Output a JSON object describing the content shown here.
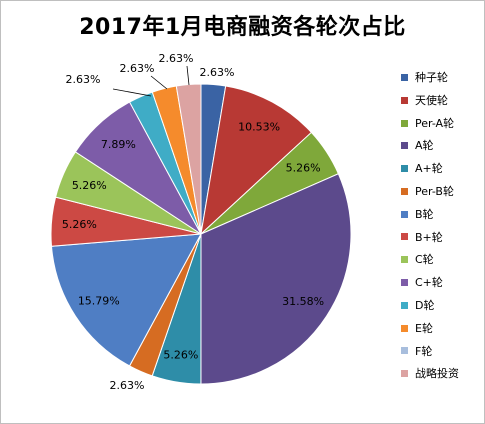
{
  "chart_data": {
    "type": "pie",
    "title": "2017年1月电商融资各轮次占比",
    "legend_position": "right",
    "slices": [
      {
        "name": "种子轮",
        "value": 2.63,
        "label": "2.63%",
        "color": "#4F81BD"
      },
      {
        "name": "天使轮",
        "value": 10.53,
        "label": "10.53%",
        "color": "#C0504D"
      },
      {
        "name": "Per-A轮",
        "value": 5.26,
        "label": "5.26%",
        "color": "#9BBB59"
      },
      {
        "name": "A轮",
        "value": 31.58,
        "label": "31.58%",
        "color": "#8064A2"
      },
      {
        "name": "A+轮",
        "value": 5.26,
        "label": "5.26%",
        "color": "#4BACC6"
      },
      {
        "name": "Per-B轮",
        "value": 2.63,
        "label": "2.63%",
        "color": "#F79646"
      },
      {
        "name": "B轮",
        "value": 15.79,
        "label": "15.79%",
        "color": "#2C4D75"
      },
      {
        "name": "B+轮",
        "value": 5.26,
        "label": "5.26%",
        "color": "#772C2A"
      },
      {
        "name": "C轮",
        "value": 5.26,
        "label": "5.26%",
        "color": "#5F7530"
      },
      {
        "name": "C+轮",
        "value": 7.89,
        "label": "7.89%",
        "color": "#4D3B62"
      },
      {
        "name": "D轮",
        "value": 2.63,
        "label": "2.63%",
        "color": "#276A7C"
      },
      {
        "name": "E轮",
        "value": 2.63,
        "label": "2.63%",
        "color": "#B65708"
      },
      {
        "name": "F轮",
        "value": 0,
        "label": "",
        "color": "#729ACA"
      },
      {
        "name": "战略投资",
        "value": 2.63,
        "label": "2.63%",
        "color": "#D99694"
      }
    ]
  },
  "styling": {
    "slice_fill_overrides": [
      "#3A63A4",
      "#B83934",
      "#7FA83A",
      "#5C4A8C",
      "#2E8DA8",
      "#D66C22",
      "#4F7EC4",
      "#CC4944",
      "#9BC45A",
      "#7D5CA8",
      "#3FACC6",
      "#F58B2C",
      "#A8BEDD",
      "#DCA3A2"
    ]
  }
}
